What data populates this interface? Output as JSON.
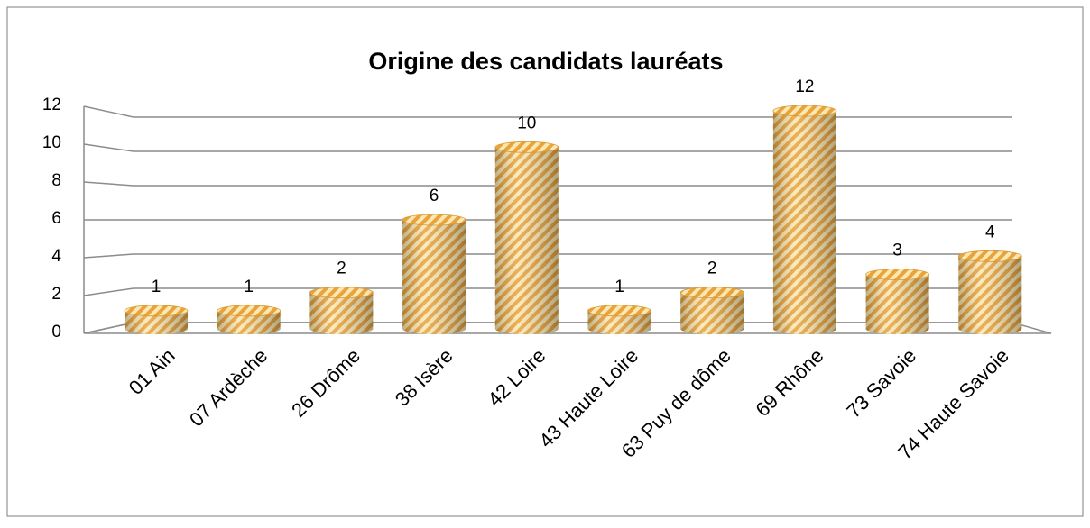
{
  "chart_data": {
    "type": "bar",
    "title": "Origine des candidats lauréats",
    "categories": [
      "01 Ain",
      "07 Ardèche",
      "26 Drôme",
      "38 Isère",
      "42 Loire",
      "43 Haute Loire",
      "63 Puy de dôme",
      "69 Rhône",
      "73 Savoie",
      "74 Haute Savoie"
    ],
    "values": [
      1,
      1,
      2,
      6,
      10,
      1,
      2,
      12,
      3,
      4
    ],
    "color": "#e8a33c",
    "ylim": [
      0,
      12
    ],
    "yticks": [
      0,
      2,
      4,
      6,
      8,
      10,
      12
    ],
    "grid": true
  }
}
